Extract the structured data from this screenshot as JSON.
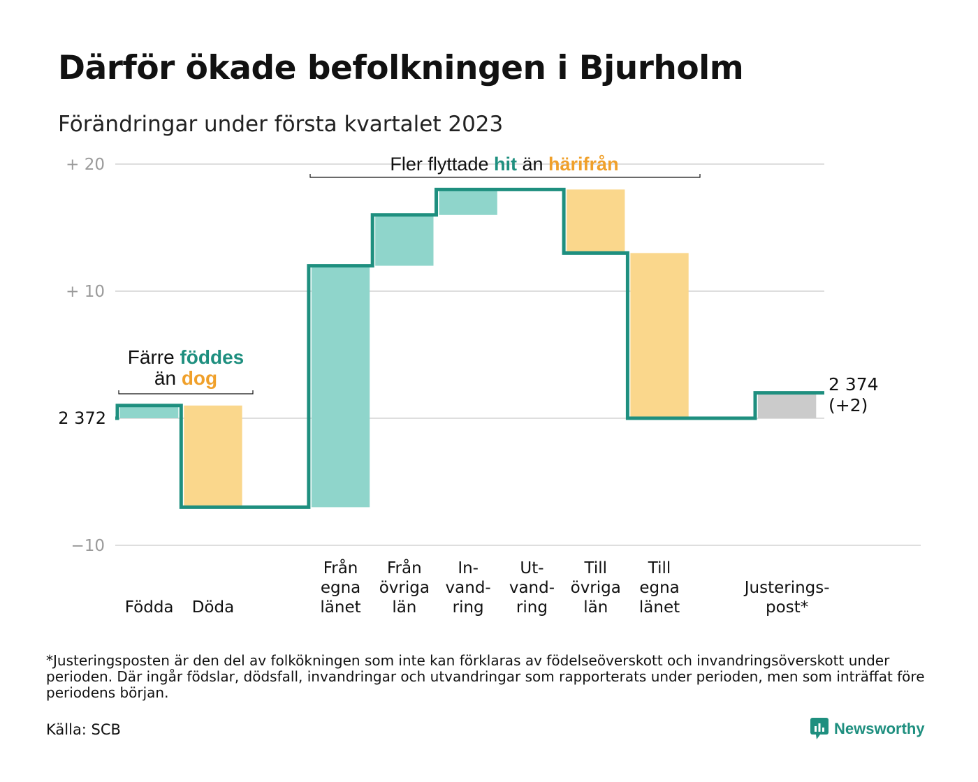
{
  "title": "Därför ökade befolkningen i Bjurholm",
  "subtitle": "Förändringar under första kvartalet 2023",
  "chart_data": {
    "type": "waterfall",
    "baseline_value": 2372,
    "ylim": [
      -10,
      20
    ],
    "y_ticks": [
      {
        "value": 20,
        "label": "+ 20"
      },
      {
        "value": 10,
        "label": "+ 10"
      },
      {
        "value": 0,
        "label": "2 372"
      },
      {
        "value": -10,
        "label": "−10"
      }
    ],
    "grid": true,
    "colors": {
      "in": "#8fd5cb",
      "out": "#fad78c",
      "adjust": "#cbcbcb",
      "line": "#1e8f7f",
      "teal_text": "#1e8f7f",
      "orange_text": "#f0a02a"
    },
    "steps": [
      {
        "label": "Födda",
        "change": 1,
        "kind": "in"
      },
      {
        "label": "Döda",
        "change": -8,
        "kind": "out"
      },
      {
        "label": "",
        "change": 0,
        "kind": "gap"
      },
      {
        "label": "Från egna länet",
        "change": 19,
        "kind": "in"
      },
      {
        "label": "Från övriga län",
        "change": 4,
        "kind": "in"
      },
      {
        "label": "In- vand- ring",
        "change": 2,
        "kind": "in"
      },
      {
        "label": "Ut- vand- ring",
        "change": 0,
        "kind": "out"
      },
      {
        "label": "Till övriga län",
        "change": -5,
        "kind": "out"
      },
      {
        "label": "Till egna länet",
        "change": -13,
        "kind": "out"
      },
      {
        "label": "",
        "change": 0,
        "kind": "gap"
      },
      {
        "label": "Justerings- post*",
        "change": 2,
        "kind": "adjust"
      }
    ],
    "category_labels": [
      {
        "step": 0,
        "lines": [
          "Födda"
        ]
      },
      {
        "step": 1,
        "lines": [
          "Döda"
        ]
      },
      {
        "step": 3,
        "lines": [
          "Från",
          "egna",
          "länet"
        ]
      },
      {
        "step": 4,
        "lines": [
          "Från",
          "övriga",
          "län"
        ]
      },
      {
        "step": 5,
        "lines": [
          "In-",
          "vand-",
          "ring"
        ]
      },
      {
        "step": 6,
        "lines": [
          "Ut-",
          "vand-",
          "ring"
        ]
      },
      {
        "step": 7,
        "lines": [
          "Till",
          "övriga",
          "län"
        ]
      },
      {
        "step": 8,
        "lines": [
          "Till",
          "egna",
          "länet"
        ]
      },
      {
        "step": 10,
        "lines": [
          "Justerings-",
          "post*"
        ]
      }
    ],
    "end_label": {
      "value": "2 374",
      "change": "(+2)"
    },
    "annotations": {
      "births": {
        "line1_pre": "Färre ",
        "line1_hl": "föddes",
        "line2_pre": "än ",
        "line2_hl": "dog"
      },
      "migration": {
        "pre": "Fler flyttade ",
        "hl1": "hit",
        "mid": " än ",
        "hl2": "härifrån"
      }
    }
  },
  "footnote": "*Justeringsposten är den del av folkökningen som inte kan förklaras av födelseöverskott och invandringsöverskott under perioden. Där ingår födslar, dödsfall, invandringar och utvandringar som rapporterats under perioden, men som inträffat före periodens början.",
  "source": "Källa: SCB",
  "brand": {
    "name": "Newsworthy",
    "icon": "newsworthy-logo-icon"
  }
}
